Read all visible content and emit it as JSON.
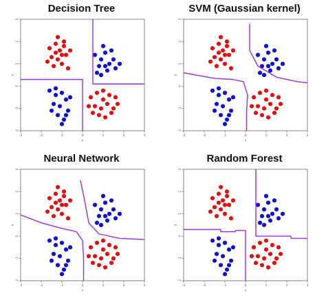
{
  "colors": {
    "class_a": "#e01010",
    "class_b": "#1010d0",
    "boundary": "#9a2be0",
    "axis": "#333333"
  },
  "chart_data": [
    {
      "type": "scatter",
      "title": "Decision Tree",
      "xlabel": "x",
      "ylabel": "y",
      "xlim": [
        -3,
        3
      ],
      "ylim": [
        -2,
        3
      ],
      "x_ticks": [
        "-3",
        "-2",
        "-1",
        "0",
        "1",
        "2",
        "3"
      ],
      "y_ticks": [
        "-2",
        "-1",
        "0",
        "1",
        "2",
        "3"
      ],
      "boundary": [
        [
          [
            -3,
            0.3
          ],
          [
            0,
            0.3
          ],
          [
            0,
            -2
          ]
        ],
        [
          [
            0.5,
            3
          ],
          [
            0.5,
            0.1
          ],
          [
            3,
            0.1
          ]
        ]
      ]
    },
    {
      "type": "scatter",
      "title": "SVM (Gaussian kernel)",
      "xlabel": "x",
      "ylabel": "y",
      "xlim": [
        -3,
        3
      ],
      "ylim": [
        -2,
        3
      ],
      "x_ticks": [
        "-3",
        "-2",
        "-1",
        "0",
        "1",
        "2",
        "3"
      ],
      "y_ticks": [
        "-2",
        "-1",
        "0",
        "1",
        "2",
        "3"
      ],
      "boundary": [
        [
          [
            -3,
            0.6
          ],
          [
            -1.5,
            0.35
          ],
          [
            -0.6,
            0.3
          ],
          [
            -0.1,
            0.2
          ],
          [
            0.1,
            -0.4
          ],
          [
            0.05,
            -1.2
          ],
          [
            0.05,
            -2
          ]
        ],
        [
          [
            0.2,
            2.8
          ],
          [
            0.2,
            1.6
          ],
          [
            0.6,
            0.9
          ],
          [
            1.5,
            0.4
          ],
          [
            2.5,
            0.2
          ],
          [
            3,
            0.15
          ]
        ]
      ]
    },
    {
      "type": "scatter",
      "title": "Neural Network",
      "xlabel": "x",
      "ylabel": "y",
      "xlim": [
        -3,
        3
      ],
      "ylim": [
        -2,
        3
      ],
      "x_ticks": [
        "-3",
        "-2",
        "-1",
        "0",
        "1",
        "2",
        "3"
      ],
      "y_ticks": [
        "-2",
        "-1",
        "0",
        "1",
        "2",
        "3"
      ],
      "boundary": [
        [
          [
            -3,
            0.95
          ],
          [
            -2,
            0.6
          ],
          [
            -1,
            0.35
          ],
          [
            -0.3,
            0.2
          ],
          [
            0,
            -0.2
          ],
          [
            0.05,
            -1.0
          ],
          [
            0.05,
            -2
          ]
        ],
        [
          [
            -0.1,
            2.5
          ],
          [
            0.1,
            1.6
          ],
          [
            0.3,
            0.6
          ],
          [
            0.8,
            0.1
          ],
          [
            1.8,
            -0.1
          ],
          [
            3,
            -0.15
          ]
        ]
      ]
    },
    {
      "type": "scatter",
      "title": "Random Forest",
      "xlabel": "x",
      "ylabel": "y",
      "xlim": [
        -3,
        3
      ],
      "ylim": [
        -2,
        3
      ],
      "x_ticks": [
        "-3",
        "-2",
        "-1",
        "0",
        "1",
        "2",
        "3"
      ],
      "y_ticks": [
        "-2",
        "-1",
        "0",
        "1",
        "2",
        "3"
      ],
      "boundary": [
        [
          [
            -3,
            0.3
          ],
          [
            -1.2,
            0.3
          ],
          [
            -1.2,
            0.2
          ],
          [
            -0.5,
            0.2
          ],
          [
            -0.5,
            0.25
          ],
          [
            0,
            0.25
          ],
          [
            0,
            -2
          ]
        ],
        [
          [
            0.5,
            3
          ],
          [
            0.5,
            0.0
          ],
          [
            2.2,
            0.0
          ],
          [
            2.2,
            -0.1
          ],
          [
            3,
            -0.1
          ]
        ]
      ]
    }
  ],
  "shared_points": {
    "class_a": [
      [
        -1.6,
        1.7
      ],
      [
        -1.3,
        1.9
      ],
      [
        -1.1,
        1.6
      ],
      [
        -0.9,
        2.0
      ],
      [
        -1.5,
        1.3
      ],
      [
        -1.2,
        1.2
      ],
      [
        -0.8,
        1.4
      ],
      [
        -1.0,
        1.0
      ],
      [
        -1.4,
        0.9
      ],
      [
        -0.7,
        0.8
      ],
      [
        -1.2,
        2.2
      ],
      [
        -0.9,
        1.8
      ],
      [
        -1.7,
        1.1
      ],
      [
        -0.6,
        1.6
      ],
      [
        -1.0,
        1.4
      ],
      [
        -1.3,
        1.5
      ],
      [
        0.4,
        -0.5
      ],
      [
        0.7,
        -0.3
      ],
      [
        1.0,
        -0.6
      ],
      [
        1.3,
        -0.4
      ],
      [
        1.6,
        -0.5
      ],
      [
        0.6,
        -0.9
      ],
      [
        0.9,
        -1.0
      ],
      [
        1.2,
        -0.8
      ],
      [
        1.5,
        -1.0
      ],
      [
        0.8,
        -1.3
      ],
      [
        1.1,
        -1.4
      ],
      [
        0.3,
        -0.9
      ],
      [
        1.4,
        -1.2
      ],
      [
        1.7,
        -0.8
      ],
      [
        0.5,
        -1.2
      ],
      [
        1.0,
        -0.2
      ]
    ],
    "class_b": [
      [
        0.6,
        1.4
      ],
      [
        0.9,
        1.2
      ],
      [
        1.1,
        1.5
      ],
      [
        1.3,
        1.0
      ],
      [
        0.8,
        0.9
      ],
      [
        1.5,
        1.2
      ],
      [
        1.2,
        0.7
      ],
      [
        0.7,
        0.6
      ],
      [
        1.0,
        1.8
      ],
      [
        1.4,
        1.6
      ],
      [
        1.8,
        1.0
      ],
      [
        0.9,
        0.5
      ],
      [
        1.6,
        0.8
      ],
      [
        1.1,
        0.9
      ],
      [
        -1.6,
        -0.2
      ],
      [
        -1.3,
        -0.4
      ],
      [
        -1.0,
        -0.3
      ],
      [
        -0.8,
        -0.6
      ],
      [
        -1.4,
        -0.8
      ],
      [
        -1.1,
        -0.9
      ],
      [
        -0.7,
        -1.1
      ],
      [
        -1.2,
        -1.3
      ],
      [
        -0.9,
        -1.5
      ],
      [
        -1.5,
        -1.1
      ],
      [
        -0.6,
        -0.5
      ],
      [
        -1.0,
        -1.7
      ],
      [
        -1.3,
        -0.1
      ],
      [
        -0.8,
        -1.3
      ]
    ]
  }
}
